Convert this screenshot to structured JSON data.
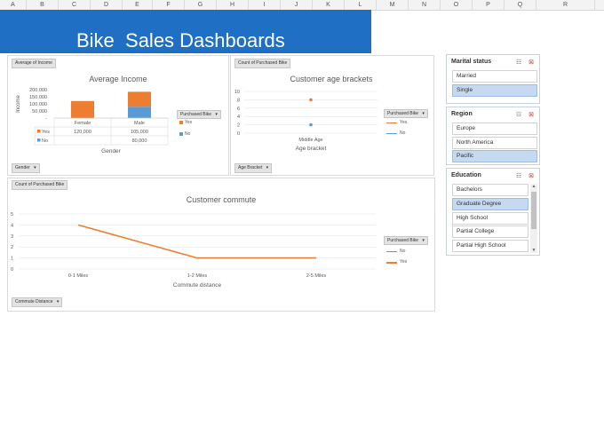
{
  "columns": [
    "A",
    "B",
    "C",
    "D",
    "E",
    "F",
    "G",
    "H",
    "I",
    "J",
    "K",
    "L",
    "M",
    "N",
    "O",
    "P",
    "Q",
    "R"
  ],
  "dashboard": {
    "title": "Bike  Sales Dashboards"
  },
  "income_chart": {
    "field_button": "Average of Income",
    "filter_button": "Gender",
    "legend_title": "Purchased Bike",
    "legend": [
      {
        "label": "Yes",
        "color": "#ed7d31"
      },
      {
        "label": "No",
        "color": "#5b9bd5"
      }
    ],
    "table": {
      "headers": [
        "",
        "Female",
        "Male"
      ],
      "rows": [
        {
          "label": "Yes",
          "values": [
            "120,000",
            "105,000"
          ]
        },
        {
          "label": "No",
          "values": [
            "",
            "80,000"
          ]
        }
      ]
    }
  },
  "age_chart": {
    "field_button": "Count of Purchased Bike",
    "filter_button": "Age Bracket",
    "legend_title": "Purchased Bike",
    "legend": [
      {
        "label": "Yes",
        "color": "#ed7d31"
      },
      {
        "label": "No",
        "color": "#5b9bd5"
      }
    ]
  },
  "commute_chart": {
    "field_button": "Count of Purchased Bike",
    "filter_button": "Commute Distance",
    "legend_title": "Purchased Bike",
    "legend": [
      {
        "label": "No",
        "color": "#5b9bd5"
      },
      {
        "label": "Yes",
        "color": "#ed7d31"
      }
    ]
  },
  "slicers": {
    "marital": {
      "title": "Marital status",
      "items": [
        {
          "label": "Married",
          "selected": false
        },
        {
          "label": "Single",
          "selected": true
        }
      ]
    },
    "region": {
      "title": "Region",
      "items": [
        {
          "label": "Europe",
          "selected": false
        },
        {
          "label": "North America",
          "selected": false
        },
        {
          "label": "Pacific",
          "selected": true
        }
      ]
    },
    "education": {
      "title": "Education",
      "items": [
        {
          "label": "Bachelors",
          "selected": false
        },
        {
          "label": "Graduate Degree",
          "selected": true
        },
        {
          "label": "High School",
          "selected": false
        },
        {
          "label": "Partial College",
          "selected": false
        },
        {
          "label": "Partial High School",
          "selected": false
        }
      ]
    }
  },
  "icons": {
    "multi_select": "multi-select-icon",
    "clear_filter": "clear-filter-icon",
    "dropdown": "dropdown-arrow-icon"
  },
  "chart_data": [
    {
      "type": "bar",
      "title": "Average Income",
      "xlabel": "Gender",
      "ylabel": "Income",
      "stacked": true,
      "categories": [
        "Female",
        "Male"
      ],
      "series": [
        {
          "name": "Yes",
          "color": "#ed7d31",
          "values": [
            120000,
            105000
          ]
        },
        {
          "name": "No",
          "color": "#5b9bd5",
          "values": [
            null,
            80000
          ]
        }
      ],
      "ylim": [
        0,
        200000
      ],
      "yticks": [
        "200,000",
        "150,000",
        "100,000",
        "50,000",
        "-"
      ],
      "legend": "right"
    },
    {
      "type": "scatter",
      "title": "Customer age brackets",
      "xlabel": "Age bracket",
      "categories": [
        "Middle Age"
      ],
      "series": [
        {
          "name": "Yes",
          "color": "#ed7d31",
          "values": [
            8
          ]
        },
        {
          "name": "No",
          "color": "#5b9bd5",
          "values": [
            2
          ]
        }
      ],
      "ylim": [
        0,
        10
      ],
      "yticks": [
        "10",
        "8",
        "6",
        "4",
        "2",
        "0"
      ],
      "grid": true,
      "legend": "right"
    },
    {
      "type": "line",
      "title": "Customer commute",
      "xlabel": "Commute distance",
      "categories": [
        "0-1 Miles",
        "1-2 Miles",
        "2-5 Miles"
      ],
      "series": [
        {
          "name": "Yes",
          "color": "#ed7d31",
          "values": [
            4,
            1,
            1
          ]
        }
      ],
      "ylim": [
        0,
        5
      ],
      "yticks": [
        "5",
        "4",
        "3",
        "2",
        "1",
        "0"
      ],
      "grid": true,
      "legend": "right"
    }
  ]
}
